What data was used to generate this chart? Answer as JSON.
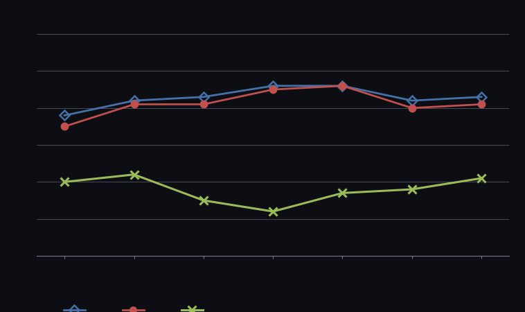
{
  "x": [
    1,
    2,
    3,
    4,
    5,
    6,
    7
  ],
  "blue_line": [
    6.8,
    7.2,
    7.3,
    7.6,
    7.6,
    7.2,
    7.3
  ],
  "red_line": [
    6.5,
    7.1,
    7.1,
    7.5,
    7.6,
    7.0,
    7.1
  ],
  "green_line": [
    5.0,
    5.2,
    4.5,
    4.2,
    4.7,
    4.8,
    5.1
  ],
  "blue_color": "#4472a8",
  "red_color": "#c0504d",
  "green_color": "#9bbb59",
  "bg_color": "#0d0d14",
  "plot_bg_color": "#0d0d14",
  "grid_color": "#555566",
  "axis_color": "#777788",
  "ylim": [
    3.0,
    9.5
  ],
  "xlim": [
    0.6,
    7.4
  ],
  "figsize": [
    7.58,
    4.5
  ],
  "dpi": 100
}
